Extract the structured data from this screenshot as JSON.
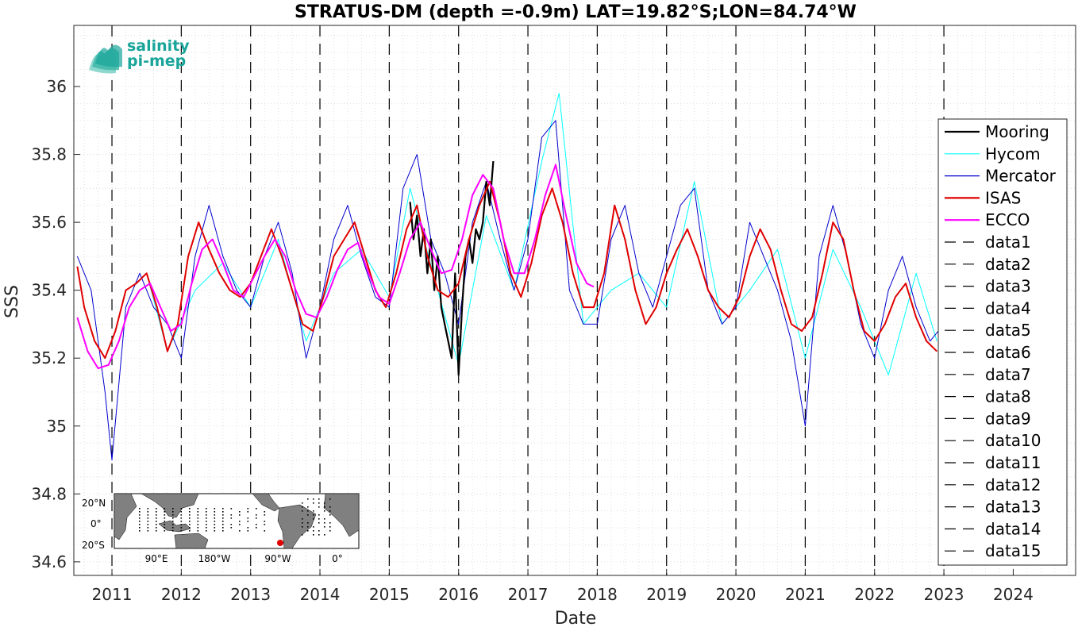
{
  "chart_data": {
    "type": "line",
    "title": "STRATUS-DM (depth =-0.9m) LAT=19.82°S;LON=84.74°W",
    "xlabel": "Date",
    "ylabel": "SSS",
    "xlim": [
      2010.45,
      2024.9
    ],
    "ylim": [
      34.56,
      36.18
    ],
    "grid": "minor dotted",
    "x_ticks": [
      2011,
      2012,
      2013,
      2014,
      2015,
      2016,
      2017,
      2018,
      2019,
      2020,
      2021,
      2022,
      2023,
      2024
    ],
    "x_tick_labels": [
      "2011",
      "2012",
      "2013",
      "2014",
      "2015",
      "2016",
      "2017",
      "2018",
      "2019",
      "2020",
      "2021",
      "2022",
      "2023",
      "2024"
    ],
    "y_ticks": [
      34.6,
      34.8,
      35,
      35.2,
      35.4,
      35.6,
      35.8,
      36
    ],
    "y_tick_labels": [
      "34.6",
      "34.8",
      "35",
      "35.2",
      "35.4",
      "35.6",
      "35.8",
      "36"
    ],
    "vertical_dashed_lines": [
      2011,
      2012,
      2013,
      2014,
      2015,
      2016,
      2017,
      2018,
      2019,
      2020,
      2021,
      2022,
      2023
    ],
    "legend_position": "right",
    "series": [
      {
        "name": "Mooring",
        "color": "#000000",
        "style": "solid-marker",
        "x": [
          2015.3,
          2015.35,
          2015.4,
          2015.45,
          2015.5,
          2015.55,
          2015.6,
          2015.65,
          2015.7,
          2015.75,
          2015.8,
          2015.85,
          2015.9,
          2015.95,
          2016.0,
          2016.05,
          2016.1,
          2016.15,
          2016.2,
          2016.25,
          2016.3,
          2016.35,
          2016.4,
          2016.45,
          2016.5
        ],
        "y": [
          35.66,
          35.55,
          35.62,
          35.5,
          35.58,
          35.45,
          35.55,
          35.4,
          35.5,
          35.35,
          35.3,
          35.25,
          35.2,
          35.45,
          35.15,
          35.35,
          35.5,
          35.55,
          35.48,
          35.58,
          35.55,
          35.6,
          35.72,
          35.65,
          35.78
        ]
      },
      {
        "name": "Hycom",
        "color": "#00ffff",
        "style": "solid",
        "x": [
          2011.5,
          2011.8,
          2012.2,
          2012.6,
          2013.0,
          2013.4,
          2013.8,
          2014.2,
          2014.6,
          2015.0,
          2015.3,
          2015.7,
          2016.0,
          2016.4,
          2016.8,
          2017.2,
          2017.45,
          2017.8,
          2018.2,
          2018.6,
          2019.0,
          2019.4,
          2019.8,
          2020.2,
          2020.6,
          2021.0,
          2021.4,
          2021.8,
          2022.2,
          2022.6,
          2022.9
        ],
        "y": [
          35.45,
          35.22,
          35.4,
          35.48,
          35.35,
          35.55,
          35.25,
          35.45,
          35.52,
          35.38,
          35.7,
          35.4,
          35.18,
          35.62,
          35.4,
          35.78,
          35.98,
          35.3,
          35.4,
          35.45,
          35.35,
          35.72,
          35.3,
          35.4,
          35.52,
          35.2,
          35.52,
          35.35,
          35.15,
          35.45,
          35.25
        ]
      },
      {
        "name": "Mercator",
        "color": "#0000cd",
        "style": "solid",
        "x": [
          2010.5,
          2010.7,
          2010.9,
          2011.0,
          2011.2,
          2011.4,
          2011.6,
          2011.8,
          2012.0,
          2012.2,
          2012.4,
          2012.6,
          2012.8,
          2013.0,
          2013.2,
          2013.4,
          2013.6,
          2013.8,
          2014.0,
          2014.2,
          2014.4,
          2014.6,
          2014.8,
          2015.0,
          2015.2,
          2015.4,
          2015.6,
          2015.8,
          2016.0,
          2016.2,
          2016.4,
          2016.6,
          2016.8,
          2017.0,
          2017.2,
          2017.4,
          2017.6,
          2017.8,
          2018.0,
          2018.2,
          2018.4,
          2018.6,
          2018.8,
          2019.0,
          2019.2,
          2019.4,
          2019.6,
          2019.8,
          2020.0,
          2020.2,
          2020.4,
          2020.6,
          2020.8,
          2021.0,
          2021.2,
          2021.4,
          2021.6,
          2021.8,
          2022.0,
          2022.2,
          2022.4,
          2022.6,
          2022.8,
          2023.0
        ],
        "y": [
          35.5,
          35.4,
          35.1,
          34.9,
          35.35,
          35.45,
          35.35,
          35.3,
          35.2,
          35.5,
          35.65,
          35.5,
          35.4,
          35.35,
          35.5,
          35.6,
          35.45,
          35.2,
          35.35,
          35.55,
          35.65,
          35.5,
          35.38,
          35.35,
          35.7,
          35.8,
          35.55,
          35.45,
          35.3,
          35.6,
          35.72,
          35.55,
          35.4,
          35.55,
          35.85,
          35.9,
          35.4,
          35.3,
          35.3,
          35.55,
          35.65,
          35.45,
          35.35,
          35.5,
          35.65,
          35.7,
          35.4,
          35.3,
          35.35,
          35.6,
          35.5,
          35.4,
          35.25,
          35.0,
          35.5,
          35.65,
          35.5,
          35.3,
          35.2,
          35.4,
          35.5,
          35.35,
          35.25,
          35.3
        ]
      },
      {
        "name": "ISAS",
        "color": "#e00000",
        "style": "solid",
        "x": [
          2010.5,
          2010.6,
          2010.75,
          2010.9,
          2011.05,
          2011.2,
          2011.35,
          2011.5,
          2011.65,
          2011.8,
          2011.95,
          2012.1,
          2012.25,
          2012.4,
          2012.55,
          2012.7,
          2012.85,
          2013.0,
          2013.15,
          2013.3,
          2013.45,
          2013.6,
          2013.75,
          2013.9,
          2014.05,
          2014.2,
          2014.35,
          2014.5,
          2014.65,
          2014.8,
          2014.95,
          2015.1,
          2015.25,
          2015.4,
          2015.55,
          2015.7,
          2015.85,
          2016.0,
          2016.15,
          2016.3,
          2016.45,
          2016.6,
          2016.75,
          2016.9,
          2017.05,
          2017.2,
          2017.35,
          2017.5,
          2017.65,
          2017.8,
          2017.95,
          2018.1,
          2018.25,
          2018.4,
          2018.55,
          2018.7,
          2018.85,
          2019.0,
          2019.15,
          2019.3,
          2019.45,
          2019.6,
          2019.75,
          2019.9,
          2020.05,
          2020.2,
          2020.35,
          2020.5,
          2020.65,
          2020.8,
          2020.95,
          2021.1,
          2021.25,
          2021.4,
          2021.55,
          2021.7,
          2021.85,
          2022.0,
          2022.15,
          2022.3,
          2022.45,
          2022.6,
          2022.75,
          2022.9
        ],
        "y": [
          35.47,
          35.35,
          35.25,
          35.2,
          35.28,
          35.4,
          35.42,
          35.45,
          35.35,
          35.22,
          35.3,
          35.5,
          35.6,
          35.52,
          35.45,
          35.4,
          35.38,
          35.42,
          35.5,
          35.58,
          35.5,
          35.4,
          35.3,
          35.28,
          35.38,
          35.5,
          35.55,
          35.6,
          35.5,
          35.4,
          35.35,
          35.45,
          35.58,
          35.65,
          35.5,
          35.4,
          35.38,
          35.42,
          35.55,
          35.65,
          35.72,
          35.6,
          35.45,
          35.38,
          35.48,
          35.62,
          35.7,
          35.6,
          35.45,
          35.35,
          35.35,
          35.45,
          35.65,
          35.55,
          35.4,
          35.3,
          35.35,
          35.45,
          35.52,
          35.58,
          35.5,
          35.4,
          35.35,
          35.32,
          35.38,
          35.5,
          35.58,
          35.52,
          35.4,
          35.3,
          35.28,
          35.32,
          35.45,
          35.6,
          35.55,
          35.4,
          35.28,
          35.25,
          35.3,
          35.38,
          35.42,
          35.32,
          35.25,
          35.22
        ]
      },
      {
        "name": "ECCO",
        "color": "#ff00ff",
        "style": "solid",
        "x": [
          2010.5,
          2010.65,
          2010.8,
          2010.95,
          2011.1,
          2011.25,
          2011.4,
          2011.55,
          2011.7,
          2011.85,
          2012.0,
          2012.15,
          2012.3,
          2012.45,
          2012.6,
          2012.75,
          2012.9,
          2013.05,
          2013.2,
          2013.35,
          2013.5,
          2013.65,
          2013.8,
          2013.95,
          2014.1,
          2014.25,
          2014.4,
          2014.55,
          2014.7,
          2014.85,
          2015.0,
          2015.15,
          2015.3,
          2015.45,
          2015.6,
          2015.75,
          2015.9,
          2016.05,
          2016.2,
          2016.35,
          2016.5,
          2016.65,
          2016.8,
          2016.95,
          2017.1,
          2017.25,
          2017.4,
          2017.55,
          2017.7,
          2017.85,
          2017.95
        ],
        "y": [
          35.32,
          35.22,
          35.17,
          35.18,
          35.25,
          35.35,
          35.4,
          35.42,
          35.35,
          35.28,
          35.3,
          35.42,
          35.52,
          35.55,
          35.48,
          35.4,
          35.38,
          35.44,
          35.5,
          35.55,
          35.5,
          35.4,
          35.33,
          35.32,
          35.38,
          35.46,
          35.52,
          35.54,
          35.45,
          35.38,
          35.36,
          35.45,
          35.55,
          35.6,
          35.52,
          35.45,
          35.46,
          35.55,
          35.68,
          35.74,
          35.7,
          35.55,
          35.45,
          35.45,
          35.55,
          35.68,
          35.77,
          35.62,
          35.48,
          35.42,
          35.41
        ]
      }
    ],
    "legend_entries": [
      "Mooring",
      "Hycom",
      "Mercator",
      "ISAS",
      "ECCO",
      "data1",
      "data2",
      "data3",
      "data4",
      "data5",
      "data6",
      "data7",
      "data8",
      "data9",
      "data10",
      "data11",
      "data12",
      "data13",
      "data14",
      "data15"
    ]
  },
  "logo": {
    "line1": "salinity",
    "line2": "pi-mep",
    "color": "#1aa59a"
  },
  "inset_map": {
    "lat_labels": [
      "20°N",
      "0°",
      "20°S"
    ],
    "lon_labels": [
      "90°E",
      "180°W",
      "90°W",
      "0°"
    ],
    "marker_color": "#e00000"
  }
}
